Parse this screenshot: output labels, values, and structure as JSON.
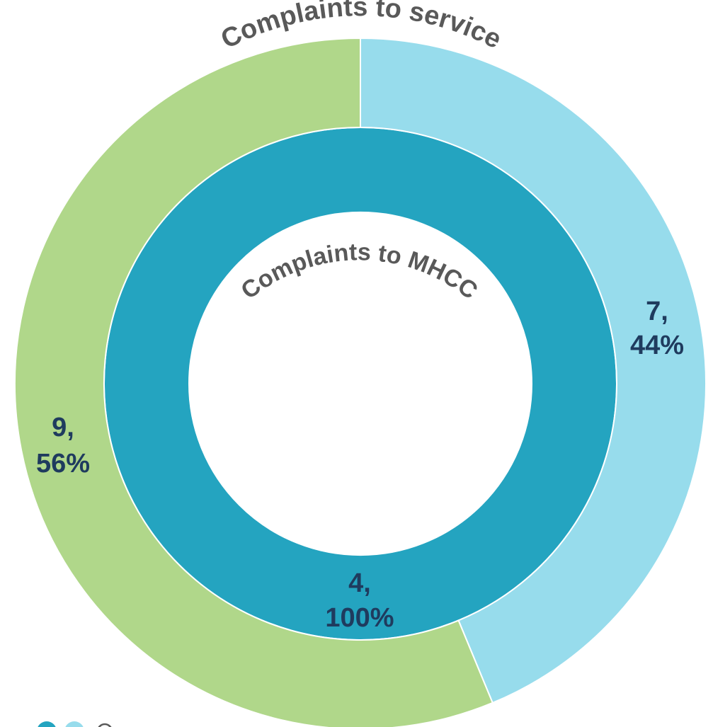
{
  "chart_data": {
    "type": "donut",
    "rings": [
      {
        "name": "Complaints to MHCC",
        "slices": [
          {
            "value": 4,
            "percent": 100,
            "label_value": "4,",
            "label_percent": "100%",
            "color": "#24a4c0"
          }
        ]
      },
      {
        "name": "Complaints to service",
        "slices": [
          {
            "value": 7,
            "percent": 44,
            "label_value": "7,",
            "label_percent": "44%",
            "color": "#97dcec"
          },
          {
            "value": 9,
            "percent": 56,
            "label_value": "9,",
            "label_percent": "56%",
            "color": "#b0d78a"
          }
        ]
      }
    ],
    "legend": {
      "position": "bottom-left",
      "markers": [
        {
          "color": "#24a4c0"
        },
        {
          "color": "#97dcec"
        }
      ]
    }
  }
}
